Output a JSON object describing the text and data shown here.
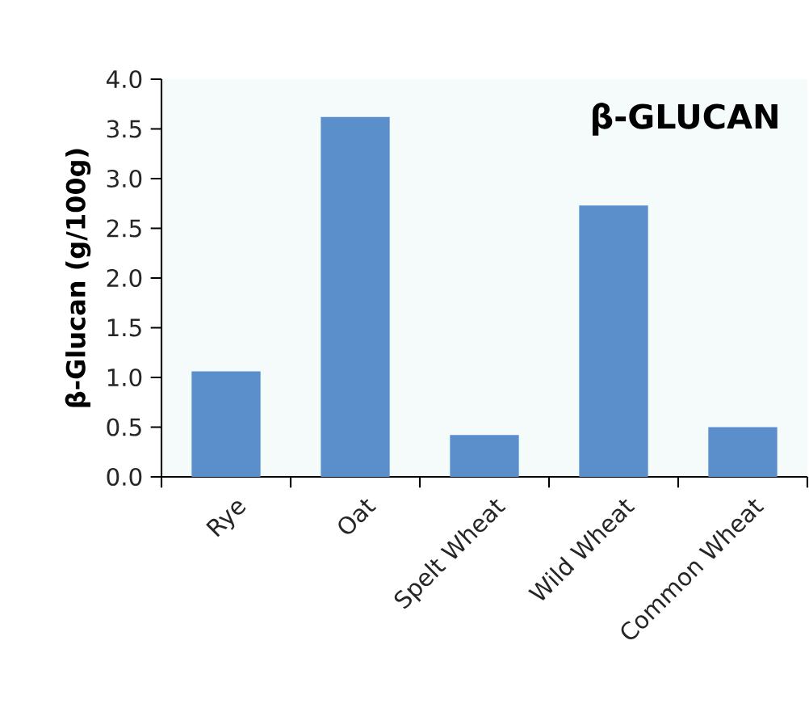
{
  "chart_data": {
    "type": "bar",
    "title": "β-GLUCAN",
    "ylabel": "β-Glucan (g/100g)",
    "categories": [
      "Rye",
      "Oat",
      "Spelt Wheat",
      "Wild Wheat",
      "Common Wheat"
    ],
    "values": [
      1.06,
      3.62,
      0.42,
      2.73,
      0.5
    ],
    "color": "#5b8fcc",
    "ylim": [
      0,
      4
    ],
    "yticks": [
      {
        "value": 0,
        "label": "0.0"
      },
      {
        "value": 0.5,
        "label": "0.5"
      },
      {
        "value": 1,
        "label": "1.0"
      },
      {
        "value": 1.5,
        "label": "1.5"
      },
      {
        "value": 2,
        "label": "2.0"
      },
      {
        "value": 2.5,
        "label": "2.5"
      },
      {
        "value": 3,
        "label": "3.0"
      },
      {
        "value": 3.5,
        "label": "3.5"
      },
      {
        "value": 4,
        "label": "4.0"
      }
    ],
    "grid": false
  }
}
